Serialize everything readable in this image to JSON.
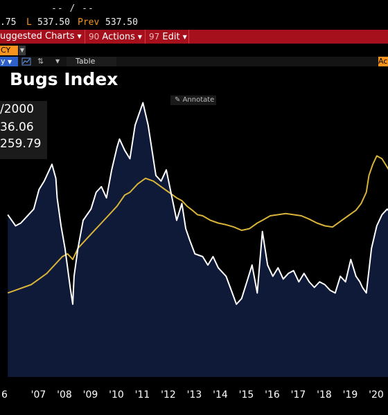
{
  "header": {
    "dashes": "-- / --",
    "low_value_partial": ".75",
    "low_label": "L",
    "low_value": "537.50",
    "prev_label": "Prev",
    "prev_value": "537.50"
  },
  "toolbar": {
    "suggested_label": "uggested Charts",
    "actions_num": "90",
    "actions_label": "Actions",
    "edit_num": "97",
    "edit_label": "Edit"
  },
  "security_row": {
    "ccy_label": "CY"
  },
  "tab_row": {
    "frequency_label": "y",
    "table_label": "Table",
    "right_tab_label": "Ac"
  },
  "chart_title": "Bugs Index",
  "annotate_label": "Annotate",
  "legend": {
    "date_partial": "/2000",
    "value1_partial": "36.06",
    "value2_partial": "259.79"
  },
  "colors": {
    "accent_orange": "#f7941d",
    "toolbar_red": "#a6101c",
    "series_gold": "#d9b33a",
    "series_white": "#ffffff",
    "area_navy": "#0e1a38"
  },
  "icons": {
    "ccy_dropdown": "chevron-down-icon",
    "line_chart": "line-chart-icon",
    "compare": "compare-icon",
    "dropdown": "triangle-down-icon",
    "annotate": "pencil-icon"
  },
  "chart_data": {
    "type": "line",
    "title": "Bugs Index",
    "x_tick_labels": [
      "6",
      "'07",
      "'08",
      "'09",
      "'10",
      "'11",
      "'12",
      "'13",
      "'14",
      "'15",
      "'16",
      "'17",
      "'18",
      "'19",
      "'20"
    ],
    "ylim": [
      150,
      700
    ],
    "grid": false,
    "series": [
      {
        "color": "#ffffff",
        "style": "line-with-filled-area",
        "x": [
          2006.3,
          2006.6,
          2006.8,
          2007.0,
          2007.3,
          2007.5,
          2007.7,
          2007.9,
          2008.0,
          2008.15,
          2008.2,
          2008.35,
          2008.5,
          2008.7,
          2008.8,
          2008.85,
          2009.0,
          2009.2,
          2009.5,
          2009.7,
          2009.9,
          2010.1,
          2010.3,
          2010.5,
          2010.6,
          2010.8,
          2011.0,
          2011.2,
          2011.5,
          2011.7,
          2011.9,
          2012.0,
          2012.2,
          2012.4,
          2012.6,
          2012.8,
          2013.0,
          2013.15,
          2013.3,
          2013.5,
          2013.8,
          2014.0,
          2014.2,
          2014.4,
          2014.7,
          2014.9,
          2015.1,
          2015.3,
          2015.5,
          2015.7,
          2015.9,
          2016.1,
          2016.3,
          2016.5,
          2016.7,
          2016.9,
          2017.1,
          2017.3,
          2017.5,
          2017.7,
          2017.9,
          2018.1,
          2018.3,
          2018.5,
          2018.7,
          2018.9,
          2019.1,
          2019.3,
          2019.5,
          2019.7,
          2019.85,
          2019.95,
          2020.1,
          2020.3,
          2020.5,
          2020.7,
          2020.9,
          2021.1,
          2021.3,
          2021.4
        ],
        "y": [
          440,
          420,
          425,
          435,
          450,
          485,
          500,
          520,
          530,
          505,
          470,
          420,
          380,
          310,
          280,
          330,
          380,
          430,
          450,
          480,
          490,
          470,
          520,
          560,
          575,
          555,
          540,
          600,
          640,
          600,
          540,
          510,
          500,
          520,
          475,
          430,
          460,
          415,
          395,
          370,
          365,
          350,
          365,
          345,
          330,
          305,
          280,
          290,
          320,
          350,
          300,
          410,
          350,
          330,
          345,
          325,
          335,
          340,
          320,
          335,
          320,
          310,
          320,
          315,
          305,
          300,
          330,
          320,
          360,
          330,
          320,
          310,
          300,
          380,
          420,
          440,
          450,
          440,
          420,
          410
        ]
      },
      {
        "color": "#d9b33a",
        "style": "line",
        "x": [
          2006.3,
          2006.6,
          2006.9,
          2007.2,
          2007.5,
          2007.8,
          2008.0,
          2008.2,
          2008.4,
          2008.6,
          2008.8,
          2009.0,
          2009.3,
          2009.6,
          2009.9,
          2010.2,
          2010.5,
          2010.8,
          2011.0,
          2011.3,
          2011.6,
          2011.9,
          2012.2,
          2012.5,
          2012.8,
          2013.0,
          2013.2,
          2013.4,
          2013.6,
          2013.8,
          2014.1,
          2014.4,
          2014.7,
          2015.0,
          2015.3,
          2015.6,
          2015.9,
          2016.1,
          2016.4,
          2016.7,
          2017.0,
          2017.3,
          2017.6,
          2017.9,
          2018.2,
          2018.5,
          2018.8,
          2019.1,
          2019.4,
          2019.7,
          2019.9,
          2020.1,
          2020.2,
          2020.35,
          2020.5,
          2020.7,
          2020.9,
          2021.1,
          2021.3,
          2021.4
        ],
        "y": [
          300,
          305,
          310,
          315,
          325,
          335,
          345,
          355,
          365,
          370,
          360,
          380,
          395,
          410,
          425,
          440,
          455,
          475,
          480,
          495,
          505,
          500,
          490,
          480,
          470,
          465,
          455,
          448,
          440,
          438,
          430,
          425,
          422,
          418,
          412,
          415,
          425,
          430,
          438,
          440,
          442,
          440,
          438,
          432,
          425,
          420,
          418,
          428,
          438,
          448,
          460,
          480,
          510,
          530,
          545,
          540,
          525,
          510,
          500,
          495
        ]
      }
    ]
  }
}
